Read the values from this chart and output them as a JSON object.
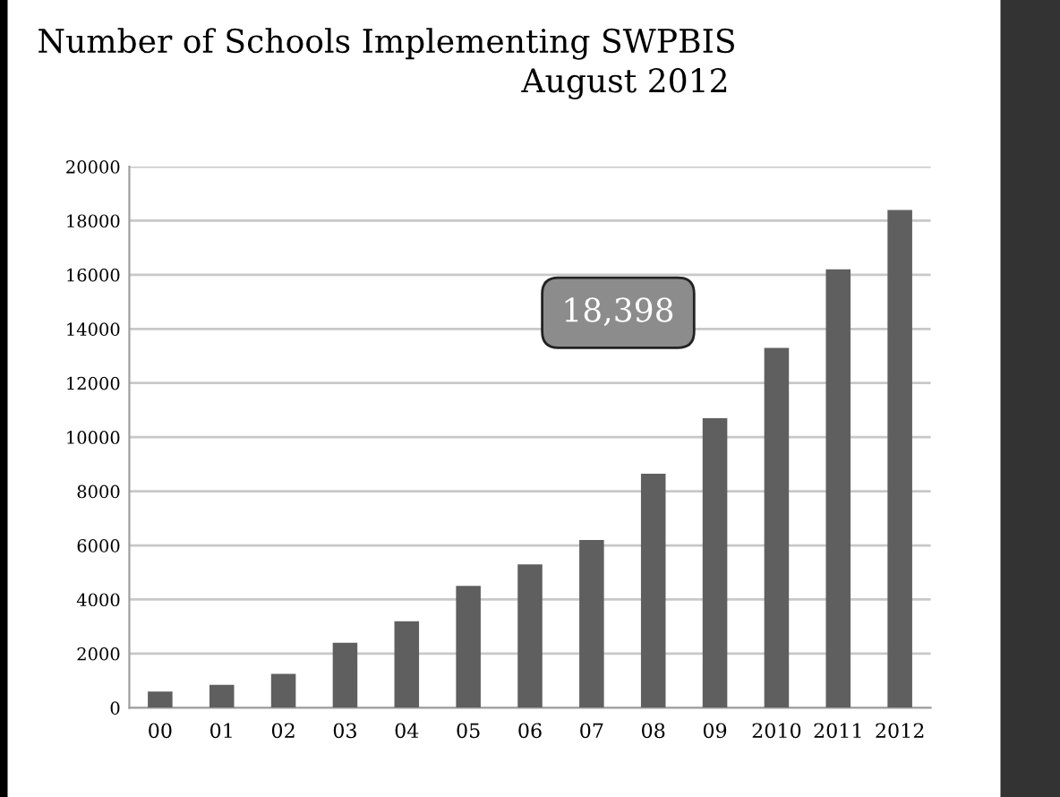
{
  "chart_data": {
    "type": "bar",
    "title": "Number of Schools Implementing SWPBIS",
    "subtitle": "August 2012",
    "categories": [
      "00",
      "01",
      "02",
      "03",
      "04",
      "05",
      "06",
      "07",
      "08",
      "09",
      "2010",
      "2011",
      "2012"
    ],
    "values": [
      600,
      850,
      1250,
      2400,
      3200,
      4500,
      5300,
      6200,
      8650,
      10700,
      13300,
      16200,
      18398
    ],
    "color": "#5f5f5f",
    "ylim": [
      0,
      20000
    ],
    "yticks": [
      0,
      2000,
      4000,
      6000,
      8000,
      10000,
      12000,
      14000,
      16000,
      18000,
      20000
    ],
    "grid": "y",
    "annotations": [
      "18,398"
    ]
  }
}
